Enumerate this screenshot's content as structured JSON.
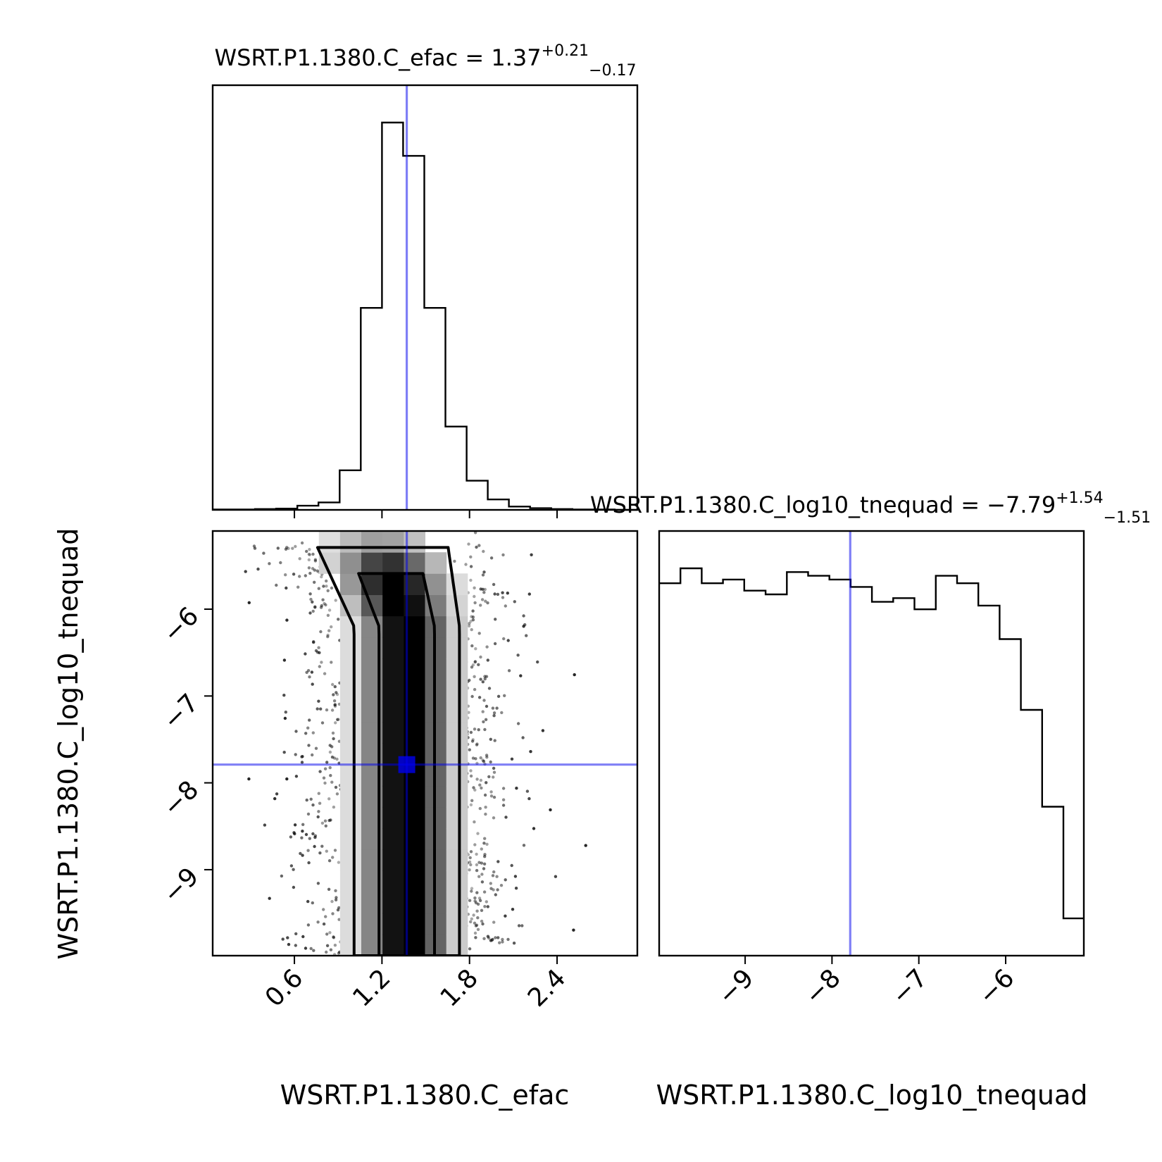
{
  "chart_data": {
    "type": "corner",
    "truth_color": "#0000ee",
    "panels": {
      "efac_hist": {
        "type": "histogram",
        "title_prefix": "WSRT.P1.1380.C_efac = 1.37",
        "title_plus": "+0.21",
        "title_minus": "−0.17",
        "xlim": [
          0.04,
          2.95
        ],
        "bin_edges": [
          0.04,
          0.185,
          0.33,
          0.475,
          0.62,
          0.765,
          0.91,
          1.055,
          1.2,
          1.345,
          1.49,
          1.635,
          1.78,
          1.925,
          2.07,
          2.215,
          2.36,
          2.505,
          2.65,
          2.795,
          2.95
        ],
        "counts": [
          1,
          1,
          2,
          3,
          10,
          18,
          95,
          485,
          930,
          850,
          485,
          200,
          70,
          25,
          8,
          4,
          2,
          1,
          1,
          0
        ],
        "truth": 1.37
      },
      "tnequad_hist": {
        "type": "histogram",
        "title_prefix": "WSRT.P1.1380.C_log10_tnequad = −7.79",
        "title_plus": "+1.54",
        "title_minus": "−1.51",
        "xlim": [
          -9.99,
          -5.1
        ],
        "bin_edges": [
          -9.99,
          -9.745,
          -9.5,
          -9.255,
          -9.01,
          -8.765,
          -8.52,
          -8.275,
          -8.03,
          -7.785,
          -7.54,
          -7.295,
          -7.05,
          -6.805,
          -6.56,
          -6.315,
          -6.07,
          -5.825,
          -5.58,
          -5.335,
          -5.1
        ],
        "counts": [
          1.0,
          1.04,
          1.0,
          1.01,
          0.98,
          0.97,
          1.03,
          1.02,
          1.01,
          0.99,
          0.95,
          0.96,
          0.93,
          1.02,
          1.0,
          0.94,
          0.85,
          0.66,
          0.4,
          0.1
        ],
        "truth": -7.79
      },
      "joint": {
        "type": "2d-histogram-contour",
        "xlim": [
          0.04,
          2.95
        ],
        "ylim": [
          -9.99,
          -5.1
        ],
        "truth": [
          1.37,
          -7.79
        ],
        "contours": [
          "1-sigma",
          "2-sigma"
        ]
      }
    },
    "x_ticks_efac": [
      "0.6",
      "1.2",
      "1.8",
      "2.4"
    ],
    "x_ticks_tnequad": [
      "−9",
      "−8",
      "−7",
      "−6"
    ],
    "y_ticks_tnequad": [
      "−6",
      "−7",
      "−8",
      "−9"
    ],
    "xlabel_efac": "WSRT.P1.1380.C_efac",
    "xlabel_tnequad": "WSRT.P1.1380.C_log10_tnequad",
    "ylabel_tnequad": "WSRT.P1.1380.C_log10_tnequad"
  }
}
